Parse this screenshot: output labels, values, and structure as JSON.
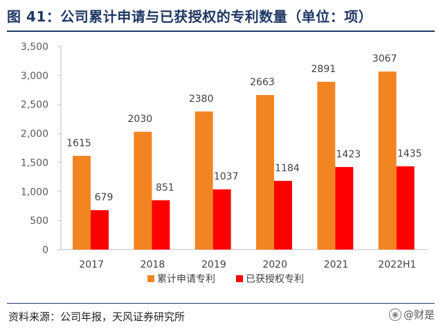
{
  "title": "图 41：公司累计申请与已获授权的专利数量（单位：项）",
  "source": "资料来源：公司年报，天风证券研究所",
  "watermark": "@财是",
  "chart_data": {
    "type": "bar",
    "categories": [
      "2017",
      "2018",
      "2019",
      "2020",
      "2021",
      "2022H1"
    ],
    "series": [
      {
        "name": "累计申请专利",
        "values": [
          1615,
          2030,
          2380,
          2663,
          2891,
          3067
        ],
        "color": "#F28522"
      },
      {
        "name": "已获授权专利",
        "values": [
          679,
          851,
          1037,
          1184,
          1423,
          1435
        ],
        "color": "#FF0000"
      }
    ],
    "ylim": [
      0,
      3500
    ],
    "yticks": [
      0,
      500,
      1000,
      1500,
      2000,
      2500,
      3000,
      3500
    ],
    "ytick_labels": [
      "0",
      "500",
      "1,000",
      "1,500",
      "2,000",
      "2,500",
      "3,000",
      "3,500"
    ],
    "grid": false,
    "legend_position": "bottom"
  }
}
